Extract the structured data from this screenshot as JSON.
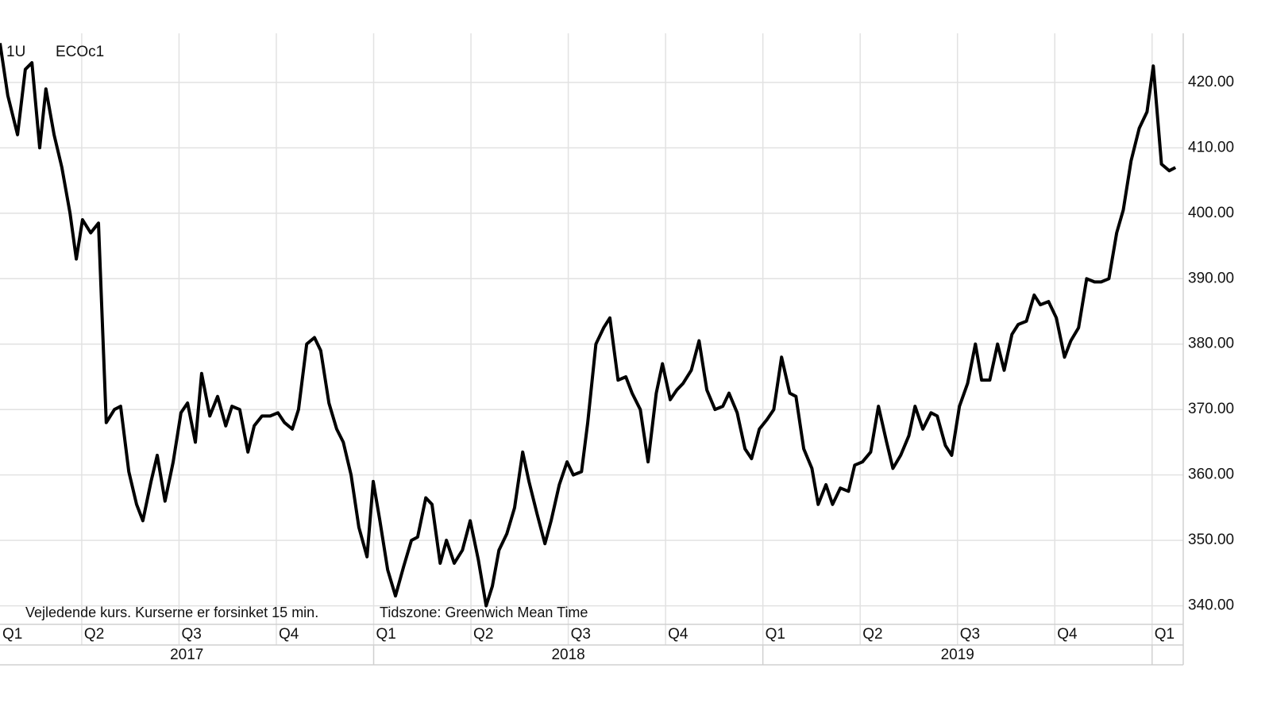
{
  "chart_data": {
    "type": "line",
    "annotations": [
      "1U",
      "Vejledende kurs. Kurserne er forsinket 15 min.",
      "Tidszone: Greenwich Mean Time"
    ],
    "x": [
      2017.04,
      2017.06,
      2017.085,
      2017.105,
      2017.122,
      2017.142,
      2017.158,
      2017.179,
      2017.199,
      2017.22,
      2017.236,
      2017.252,
      2017.273,
      2017.293,
      2017.313,
      2017.334,
      2017.35,
      2017.371,
      2017.391,
      2017.407,
      2017.428,
      2017.444,
      2017.464,
      2017.485,
      2017.505,
      2017.522,
      2017.542,
      2017.558,
      2017.579,
      2017.599,
      2017.62,
      2017.636,
      2017.656,
      2017.677,
      2017.693,
      2017.713,
      2017.734,
      2017.754,
      2017.771,
      2017.791,
      2017.807,
      2017.828,
      2017.848,
      2017.864,
      2017.885,
      2017.905,
      2017.922,
      2017.942,
      2017.962,
      2017.983,
      2017.999,
      2018.016,
      2018.036,
      2018.056,
      2018.077,
      2018.097,
      2018.113,
      2018.134,
      2018.15,
      2018.171,
      2018.187,
      2018.207,
      2018.228,
      2018.248,
      2018.269,
      2018.289,
      2018.305,
      2018.322,
      2018.342,
      2018.362,
      2018.383,
      2018.399,
      2018.42,
      2018.44,
      2018.456,
      2018.477,
      2018.497,
      2018.513,
      2018.534,
      2018.55,
      2018.571,
      2018.591,
      2018.607,
      2018.628,
      2018.648,
      2018.664,
      2018.685,
      2018.705,
      2018.726,
      2018.742,
      2018.762,
      2018.779,
      2018.795,
      2018.816,
      2018.836,
      2018.856,
      2018.877,
      2018.897,
      2018.913,
      2018.934,
      2018.954,
      2018.971,
      2018.991,
      2019.011,
      2019.028,
      2019.048,
      2019.069,
      2019.085,
      2019.105,
      2019.126,
      2019.142,
      2019.162,
      2019.179,
      2019.199,
      2019.22,
      2019.236,
      2019.256,
      2019.277,
      2019.297,
      2019.318,
      2019.334,
      2019.354,
      2019.375,
      2019.391,
      2019.411,
      2019.432,
      2019.448,
      2019.469,
      2019.485,
      2019.505,
      2019.526,
      2019.546,
      2019.562,
      2019.583,
      2019.603,
      2019.62,
      2019.64,
      2019.656,
      2019.677,
      2019.697,
      2019.713,
      2019.734,
      2019.754,
      2019.775,
      2019.791,
      2019.811,
      2019.832,
      2019.852,
      2019.869,
      2019.889,
      2019.909,
      2019.926,
      2019.946,
      2019.967,
      2019.987,
      2020.003,
      2020.024,
      2020.044,
      2020.06
    ],
    "series": [
      {
        "name": "ECOc1",
        "color": "#000000",
        "values": [
          426,
          418,
          412,
          422,
          423,
          410,
          419,
          412,
          407,
          400,
          393,
          399,
          397,
          398.5,
          368,
          370,
          370.5,
          360.5,
          355.5,
          353,
          359,
          363,
          356,
          362,
          369.5,
          371,
          365,
          375.5,
          369,
          372,
          367.5,
          370.5,
          370,
          363.5,
          367.5,
          369,
          369,
          369.5,
          368,
          367,
          370,
          380,
          381,
          379,
          371,
          367,
          365,
          360,
          352,
          347.5,
          359,
          353,
          345.5,
          341.5,
          346,
          350,
          350.5,
          356.5,
          355.5,
          346.5,
          350,
          346.5,
          348.5,
          353,
          347,
          340,
          343,
          348.5,
          351,
          355,
          363.5,
          359,
          354,
          349.5,
          353,
          358.5,
          362,
          360,
          360.5,
          368,
          380,
          382.5,
          384,
          374.5,
          375,
          372.5,
          370,
          362,
          372.5,
          377,
          371.5,
          373,
          374,
          376,
          380.5,
          373,
          370,
          370.5,
          372.5,
          369.5,
          364,
          362.5,
          367,
          368.5,
          370,
          378,
          372.5,
          372,
          364,
          361,
          355.5,
          358.5,
          355.5,
          358,
          357.5,
          361.5,
          362,
          363.5,
          370.5,
          365,
          361,
          363,
          366,
          370.5,
          367,
          369.5,
          369,
          364.5,
          363,
          370.5,
          374,
          380,
          374.5,
          374.5,
          380,
          376,
          381.5,
          383,
          383.5,
          387.5,
          386,
          386.5,
          384,
          378,
          380.5,
          382.5,
          390,
          389.5,
          389.5,
          390,
          397,
          400.5,
          408,
          413,
          415.5,
          422.5,
          407.5,
          406.5,
          407
        ]
      }
    ],
    "xlim": [
      2017.04,
      2020.08
    ],
    "xticks": [
      {
        "value": 2017,
        "label": "Q1"
      },
      {
        "value": 2017.25,
        "label": "Q2"
      },
      {
        "value": 2017.5,
        "label": "Q3"
      },
      {
        "value": 2017.75,
        "label": "Q4"
      },
      {
        "value": 2018,
        "label": "Q1"
      },
      {
        "value": 2018.25,
        "label": "Q2"
      },
      {
        "value": 2018.5,
        "label": "Q3"
      },
      {
        "value": 2018.75,
        "label": "Q4"
      },
      {
        "value": 2019,
        "label": "Q1"
      },
      {
        "value": 2019.25,
        "label": "Q2"
      },
      {
        "value": 2019.5,
        "label": "Q3"
      },
      {
        "value": 2019.75,
        "label": "Q4"
      },
      {
        "value": 2020,
        "label": "Q1"
      }
    ],
    "years": [
      2017,
      2018,
      2019
    ],
    "ylim": [
      336.8,
      427.5
    ],
    "yticks": [
      {
        "value": 340,
        "label": "340.00"
      },
      {
        "value": 350,
        "label": "350.00"
      },
      {
        "value": 360,
        "label": "360.00"
      },
      {
        "value": 370,
        "label": "370.00"
      },
      {
        "value": 380,
        "label": "380.00"
      },
      {
        "value": 390,
        "label": "390.00"
      },
      {
        "value": 400,
        "label": "400.00"
      },
      {
        "value": 410,
        "label": "410.00"
      },
      {
        "value": 420,
        "label": "420.00"
      }
    ],
    "grid": true
  }
}
